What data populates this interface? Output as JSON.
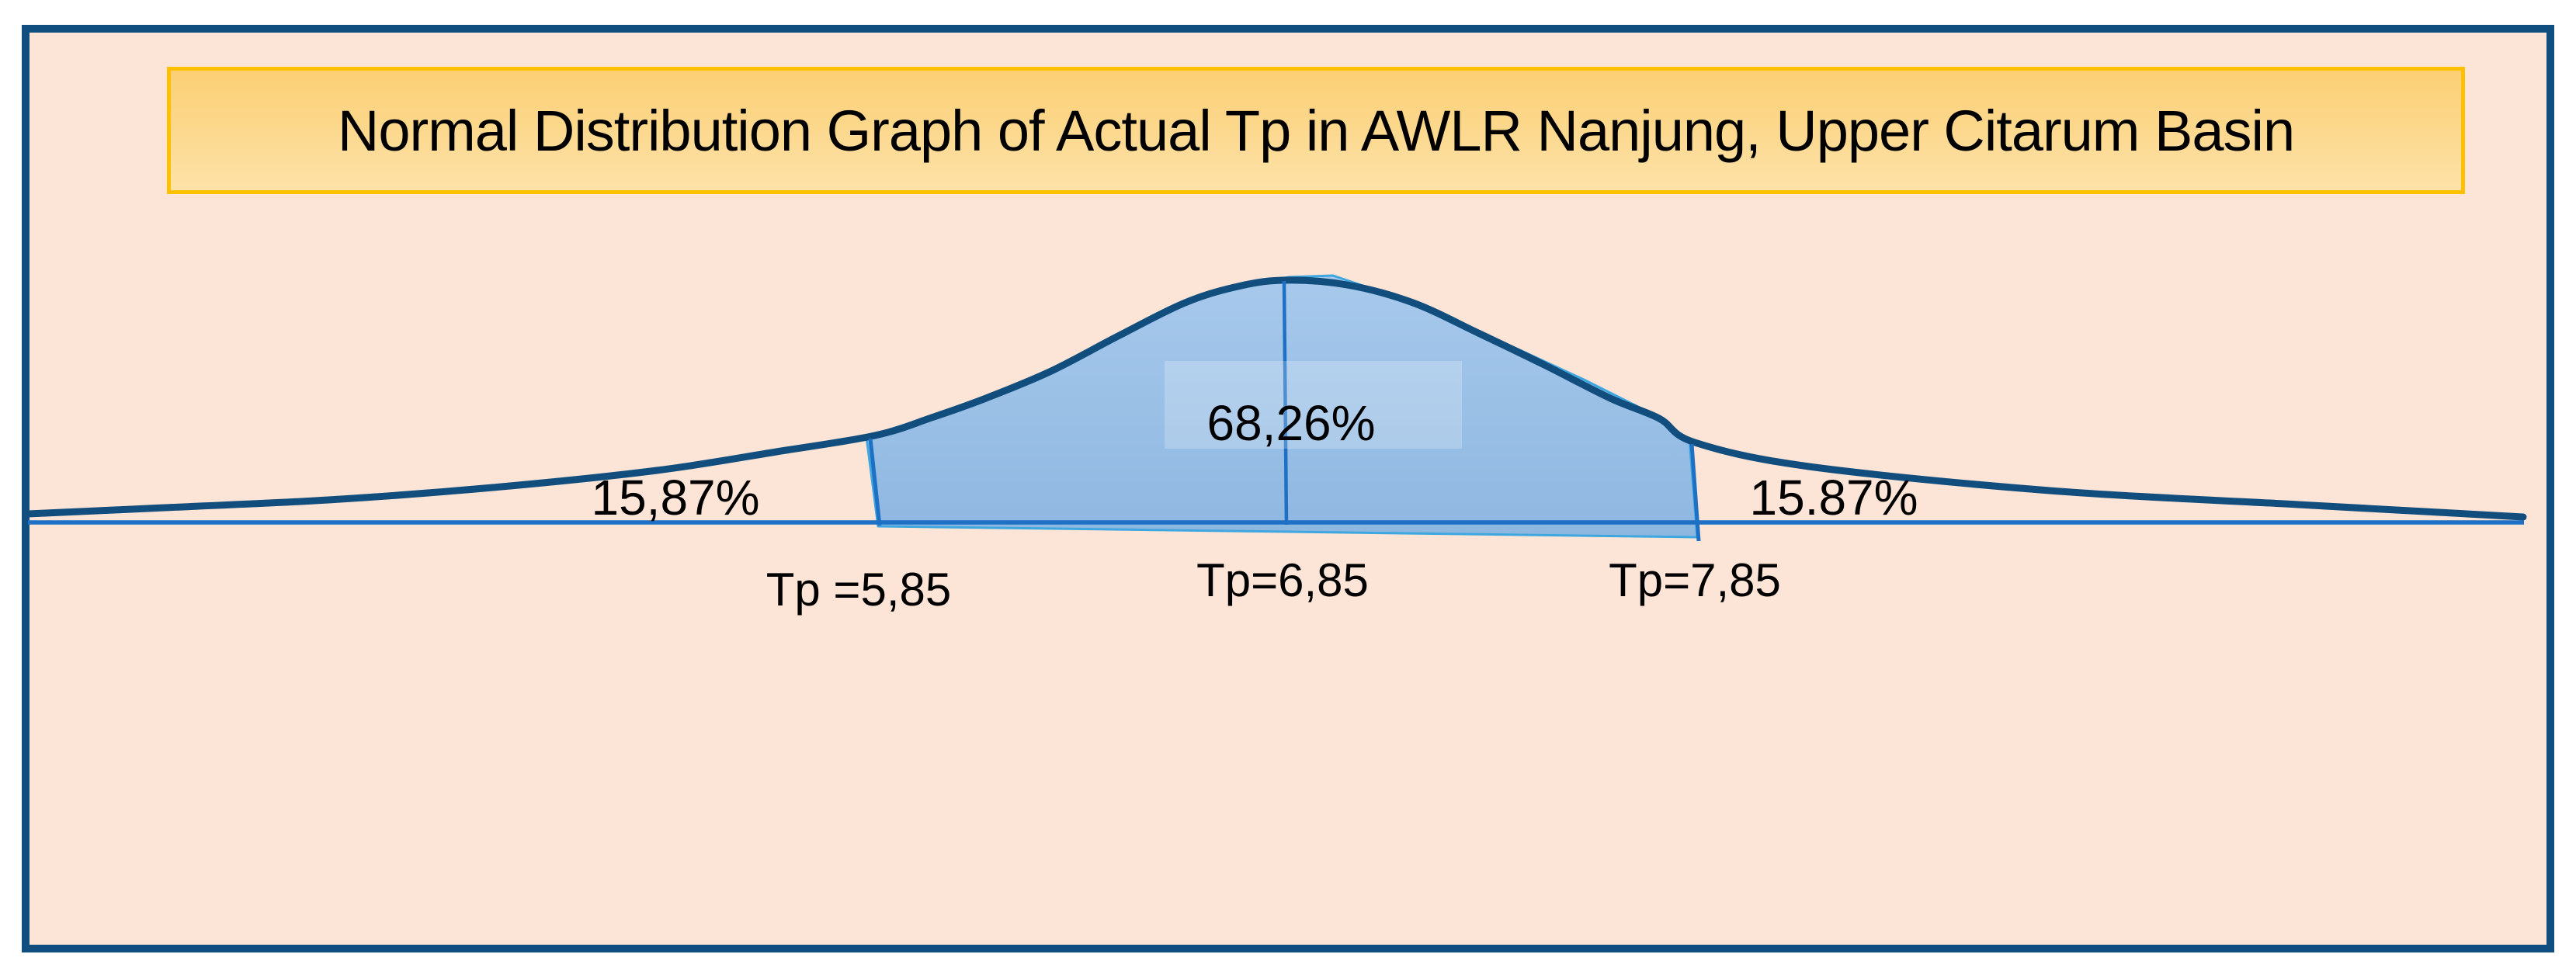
{
  "title": "Normal Distribution Graph of Actual Tp in AWLR Nanjung, Upper Citarum Basin",
  "colors": {
    "frame_border": "#114E80",
    "background": "#FCE4D6",
    "page_margin": "#FFFFFF",
    "title_border": "#FFC000",
    "title_fill_top": "#FBCF74",
    "title_fill_bottom": "#FDE2A8",
    "curve": "#124E7D",
    "axis": "#1E70C4",
    "area_edge": "#3FA7DF",
    "area_fill_top": "#A7C9EC",
    "area_fill_bottom": "#8EB7E0",
    "text": "#000000"
  },
  "chart_data": {
    "type": "area",
    "title": "Normal Distribution Graph of Actual Tp in AWLR Nanjung, Upper Citarum Basin",
    "distribution": "normal",
    "values": {
      "tp_mean": 6.85,
      "tp_lower_sigma": 5.85,
      "tp_upper_sigma": 7.85,
      "area_within_1sigma_pct": 68.26,
      "left_tail_pct": 15.87,
      "right_tail_pct": 15.87
    },
    "labels": {
      "center_area": "68,26%",
      "left_tail": "15,87%",
      "right_tail": "15.87%",
      "tp_lower": "Tp =5,85",
      "tp_mean": "Tp=6,85",
      "tp_upper": "Tp=7,85"
    },
    "axes": {
      "x_axis_line": true,
      "y_axis": "none",
      "tick_labels": "none",
      "gridlines": false,
      "legend": "none"
    },
    "geometry": {
      "baseline": [
        36,
        3251,
        673
      ],
      "curve": [
        [
          36,
          662
        ],
        [
          212,
          654
        ],
        [
          423,
          644
        ],
        [
          635,
          628
        ],
        [
          846,
          606
        ],
        [
          1000,
          582
        ],
        [
          1127,
          561
        ],
        [
          1200,
          538
        ],
        [
          1270,
          513
        ],
        [
          1354,
          478
        ],
        [
          1440,
          433
        ],
        [
          1524,
          391
        ],
        [
          1590,
          370
        ],
        [
          1653,
          361
        ],
        [
          1735,
          367
        ],
        [
          1820,
          390
        ],
        [
          1904,
          429
        ],
        [
          1989,
          470
        ],
        [
          2074,
          513
        ],
        [
          2137,
          539
        ],
        [
          2183,
          570
        ],
        [
          2330,
          601
        ],
        [
          2640,
          632
        ],
        [
          2960,
          650
        ],
        [
          3250,
          666
        ]
      ],
      "area_polygon": [
        [
          1131,
          678
        ],
        [
          1116,
          563
        ],
        [
          1200,
          536
        ],
        [
          1270,
          511
        ],
        [
          1354,
          476
        ],
        [
          1440,
          431
        ],
        [
          1524,
          389
        ],
        [
          1600,
          367
        ],
        [
          1660,
          357
        ],
        [
          1717,
          355
        ],
        [
          1800,
          383
        ],
        [
          1880,
          416
        ],
        [
          1960,
          452
        ],
        [
          2040,
          489
        ],
        [
          2110,
          524
        ],
        [
          2176,
          566
        ],
        [
          2186,
          692
        ]
      ],
      "mean_line": [
        1654,
        362,
        1657,
        676
      ],
      "lower_bound_line": [
        1121,
        565,
        1133,
        677
      ],
      "upper_bound_line": [
        2179,
        572,
        2188,
        697
      ],
      "label_rect": [
        1500,
        465,
        383,
        113
      ],
      "text_positions": {
        "area_pct": [
          1663,
          567
        ],
        "left_tail": [
          870,
          663
        ],
        "right_tail": [
          2362,
          663
        ],
        "tp_lower": [
          1106,
          780
        ],
        "tp_mean": [
          1652,
          768
        ],
        "tp_upper": [
          2183,
          768
        ]
      }
    }
  }
}
